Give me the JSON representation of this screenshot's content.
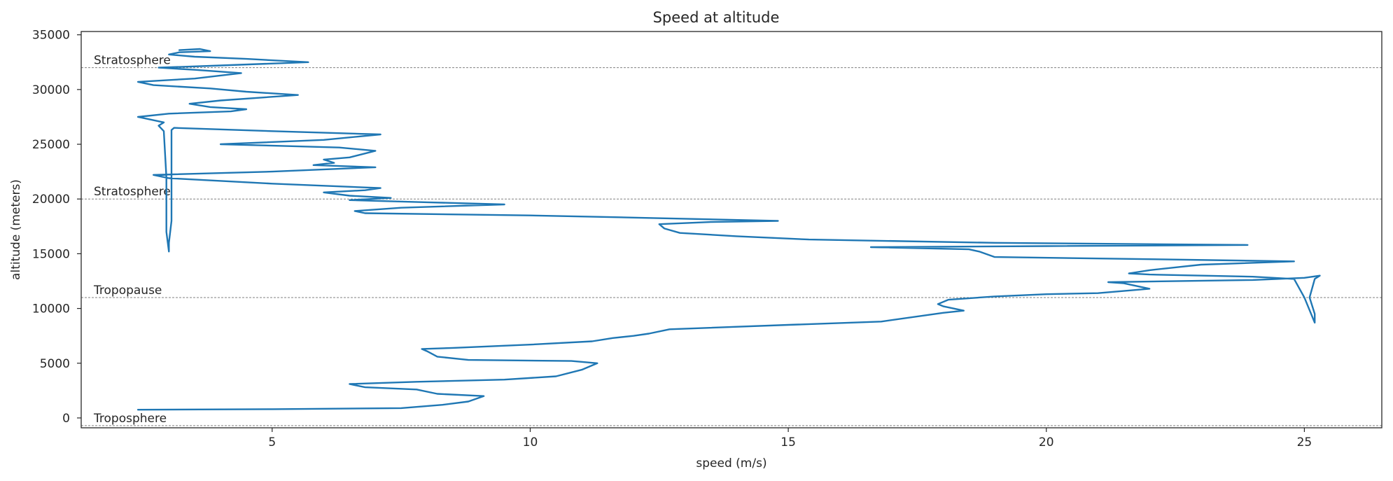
{
  "chart_data": {
    "type": "line",
    "title": "Speed at altitude",
    "xlabel": "speed (m/s)",
    "ylabel": "altitude (meters)",
    "xlim": [
      1.3,
      26.5
    ],
    "ylim": [
      -900,
      35300
    ],
    "xticks": [
      5,
      10,
      15,
      20,
      25
    ],
    "yticks": [
      0,
      5000,
      10000,
      15000,
      20000,
      25000,
      30000,
      35000
    ],
    "grid": false,
    "line_color": "#1f77b4",
    "reference_color": "#808080",
    "reference_lines": [
      {
        "label": "Troposphere",
        "y": -700
      },
      {
        "label": "Tropopause",
        "y": 11000
      },
      {
        "label": "Stratosphere",
        "y": 20000
      },
      {
        "label": "Stratosphere",
        "y": 32000
      }
    ],
    "series": [
      {
        "points": [
          [
            2.4,
            750
          ],
          [
            5.0,
            800
          ],
          [
            7.5,
            900
          ],
          [
            8.3,
            1200
          ],
          [
            8.8,
            1500
          ],
          [
            9.1,
            2000
          ],
          [
            8.2,
            2200
          ],
          [
            7.8,
            2600
          ],
          [
            6.8,
            2800
          ],
          [
            6.5,
            3100
          ],
          [
            7.8,
            3300
          ],
          [
            9.5,
            3500
          ],
          [
            10.5,
            3800
          ],
          [
            11.0,
            4400
          ],
          [
            11.2,
            4800
          ],
          [
            11.3,
            5000
          ],
          [
            10.8,
            5200
          ],
          [
            8.8,
            5300
          ],
          [
            8.2,
            5600
          ],
          [
            8.0,
            6100
          ],
          [
            7.9,
            6300
          ],
          [
            8.5,
            6400
          ],
          [
            10.0,
            6700
          ],
          [
            11.2,
            7000
          ],
          [
            11.6,
            7300
          ],
          [
            12.0,
            7500
          ],
          [
            12.3,
            7700
          ],
          [
            12.7,
            8100
          ],
          [
            15.0,
            8500
          ],
          [
            16.8,
            8800
          ],
          [
            18.0,
            9600
          ],
          [
            18.4,
            9800
          ],
          [
            18.0,
            10200
          ],
          [
            17.9,
            10400
          ],
          [
            18.1,
            10800
          ],
          [
            19.0,
            11100
          ],
          [
            20.0,
            11300
          ],
          [
            21.0,
            11400
          ],
          [
            22.0,
            11800
          ],
          [
            21.8,
            12000
          ],
          [
            21.5,
            12300
          ],
          [
            21.2,
            12400
          ],
          [
            24.0,
            12600
          ],
          [
            25.0,
            12800
          ],
          [
            25.3,
            13000
          ],
          [
            25.2,
            12700
          ],
          [
            25.1,
            11000
          ],
          [
            25.2,
            9500
          ],
          [
            25.2,
            8700
          ],
          [
            25.0,
            11000
          ],
          [
            24.8,
            12700
          ],
          [
            24.0,
            12900
          ],
          [
            22.0,
            13100
          ],
          [
            21.6,
            13200
          ],
          [
            22.0,
            13500
          ],
          [
            23.0,
            14000
          ],
          [
            24.8,
            14300
          ],
          [
            22.0,
            14500
          ],
          [
            19.0,
            14700
          ],
          [
            18.7,
            15200
          ],
          [
            18.5,
            15400
          ],
          [
            16.6,
            15600
          ],
          [
            20.0,
            15700
          ],
          [
            23.9,
            15800
          ],
          [
            19.0,
            16000
          ],
          [
            15.4,
            16300
          ],
          [
            14.0,
            16600
          ],
          [
            12.9,
            16900
          ],
          [
            12.6,
            17300
          ],
          [
            12.5,
            17700
          ],
          [
            13.5,
            17900
          ],
          [
            14.8,
            18000
          ],
          [
            12.0,
            18300
          ],
          [
            10.0,
            18500
          ],
          [
            6.8,
            18700
          ],
          [
            6.6,
            18900
          ],
          [
            7.5,
            19200
          ],
          [
            9.5,
            19500
          ],
          [
            8.0,
            19700
          ],
          [
            6.5,
            19900
          ],
          [
            7.3,
            20100
          ],
          [
            6.5,
            20300
          ],
          [
            6.0,
            20600
          ],
          [
            6.8,
            20800
          ],
          [
            7.1,
            21000
          ],
          [
            5.0,
            21400
          ],
          [
            3.0,
            21900
          ],
          [
            2.7,
            22200
          ],
          [
            5.0,
            22500
          ],
          [
            7.0,
            22900
          ],
          [
            5.8,
            23100
          ],
          [
            6.2,
            23300
          ],
          [
            6.0,
            23600
          ],
          [
            6.5,
            23800
          ],
          [
            7.0,
            24400
          ],
          [
            6.3,
            24700
          ],
          [
            4.0,
            25000
          ],
          [
            6.0,
            25400
          ],
          [
            7.1,
            25900
          ],
          [
            5.0,
            26200
          ],
          [
            3.1,
            26500
          ],
          [
            3.05,
            26300
          ],
          [
            3.05,
            22000
          ],
          [
            3.05,
            18000
          ],
          [
            3.0,
            16000
          ],
          [
            3.0,
            15200
          ],
          [
            2.95,
            17000
          ],
          [
            2.95,
            22000
          ],
          [
            2.9,
            26200
          ],
          [
            2.8,
            26700
          ],
          [
            2.9,
            27000
          ],
          [
            2.6,
            27300
          ],
          [
            2.4,
            27500
          ],
          [
            3.0,
            27800
          ],
          [
            4.2,
            28000
          ],
          [
            4.5,
            28200
          ],
          [
            3.8,
            28400
          ],
          [
            3.4,
            28700
          ],
          [
            4.0,
            29000
          ],
          [
            5.5,
            29500
          ],
          [
            4.5,
            29800
          ],
          [
            3.8,
            30100
          ],
          [
            2.7,
            30400
          ],
          [
            2.4,
            30700
          ],
          [
            3.5,
            31000
          ],
          [
            4.4,
            31500
          ],
          [
            3.5,
            31800
          ],
          [
            2.8,
            32000
          ],
          [
            4.0,
            32200
          ],
          [
            5.7,
            32500
          ],
          [
            4.5,
            32800
          ],
          [
            3.5,
            33000
          ],
          [
            3.0,
            33200
          ],
          [
            3.2,
            33400
          ],
          [
            3.8,
            33500
          ],
          [
            3.6,
            33700
          ],
          [
            3.2,
            33600
          ]
        ]
      }
    ]
  }
}
